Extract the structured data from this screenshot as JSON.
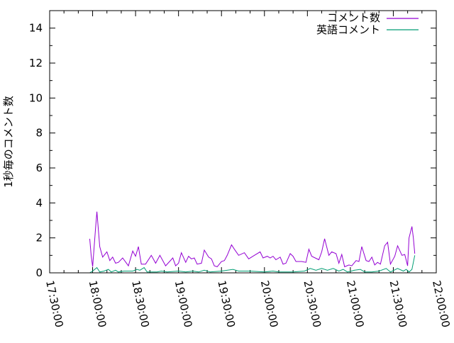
{
  "chart_data": {
    "type": "line",
    "title": "",
    "xlabel": "",
    "ylabel": "1秒毎のコメント数",
    "xlim": [
      "17:30:00",
      "22:00:00"
    ],
    "ylim": [
      0,
      15
    ],
    "xticks": [
      "17:30:00",
      "18:00:00",
      "18:30:00",
      "19:00:00",
      "19:30:00",
      "20:00:00",
      "20:30:00",
      "21:00:00",
      "21:30:00",
      "22:00:00"
    ],
    "yticks": [
      "0",
      "2",
      "4",
      "6",
      "8",
      "10",
      "12",
      "14"
    ],
    "grid": false,
    "legend_position": "top-right",
    "series": [
      {
        "name": "コメント数",
        "color": "#9400d3",
        "points": [
          [
            "17:58",
            1.95
          ],
          [
            "17:59",
            1.0
          ],
          [
            "18:00",
            0.35
          ],
          [
            "18:02",
            2.5
          ],
          [
            "18:03",
            3.5
          ],
          [
            "18:04",
            2.5
          ],
          [
            "18:05",
            1.5
          ],
          [
            "18:07",
            0.9
          ],
          [
            "18:10",
            1.2
          ],
          [
            "18:12",
            0.7
          ],
          [
            "18:14",
            0.9
          ],
          [
            "18:16",
            0.55
          ],
          [
            "18:18",
            0.6
          ],
          [
            "18:21",
            0.85
          ],
          [
            "18:25",
            0.4
          ],
          [
            "18:28",
            1.25
          ],
          [
            "18:30",
            0.95
          ],
          [
            "18:32",
            1.5
          ],
          [
            "18:34",
            0.5
          ],
          [
            "18:37",
            0.5
          ],
          [
            "18:41",
            1.0
          ],
          [
            "18:44",
            0.55
          ],
          [
            "18:47",
            1.0
          ],
          [
            "18:51",
            0.4
          ],
          [
            "18:56",
            0.85
          ],
          [
            "18:58",
            0.4
          ],
          [
            "19:00",
            0.55
          ],
          [
            "19:02",
            1.15
          ],
          [
            "19:05",
            0.6
          ],
          [
            "19:07",
            0.95
          ],
          [
            "19:09",
            0.8
          ],
          [
            "19:11",
            0.85
          ],
          [
            "19:13",
            0.5
          ],
          [
            "19:16",
            0.55
          ],
          [
            "19:18",
            1.3
          ],
          [
            "19:21",
            0.9
          ],
          [
            "19:23",
            0.8
          ],
          [
            "19:25",
            0.4
          ],
          [
            "19:27",
            0.35
          ],
          [
            "19:30",
            0.65
          ],
          [
            "19:32",
            0.7
          ],
          [
            "19:34",
            1.0
          ],
          [
            "19:37",
            1.6
          ],
          [
            "19:39",
            1.35
          ],
          [
            "19:42",
            1.0
          ],
          [
            "19:46",
            1.15
          ],
          [
            "19:49",
            0.8
          ],
          [
            "19:52",
            0.95
          ],
          [
            "19:53",
            1.0
          ],
          [
            "19:57",
            1.2
          ],
          [
            "19:59",
            0.85
          ],
          [
            "20:02",
            0.95
          ],
          [
            "20:04",
            0.85
          ],
          [
            "20:06",
            0.95
          ],
          [
            "20:08",
            0.75
          ],
          [
            "20:11",
            0.9
          ],
          [
            "20:13",
            0.5
          ],
          [
            "20:15",
            0.55
          ],
          [
            "20:18",
            1.1
          ],
          [
            "20:20",
            0.95
          ],
          [
            "20:22",
            0.65
          ],
          [
            "20:26",
            0.65
          ],
          [
            "20:29",
            0.6
          ],
          [
            "20:31",
            1.35
          ],
          [
            "20:33",
            0.95
          ],
          [
            "20:38",
            0.75
          ],
          [
            "20:40",
            1.2
          ],
          [
            "20:42",
            1.95
          ],
          [
            "20:45",
            1.0
          ],
          [
            "20:47",
            1.2
          ],
          [
            "20:50",
            1.1
          ],
          [
            "20:52",
            0.55
          ],
          [
            "20:54",
            1.05
          ],
          [
            "20:56",
            0.35
          ],
          [
            "20:59",
            0.45
          ],
          [
            "21:01",
            0.4
          ],
          [
            "21:04",
            0.7
          ],
          [
            "21:06",
            0.65
          ],
          [
            "21:08",
            1.5
          ],
          [
            "21:11",
            0.7
          ],
          [
            "21:13",
            0.65
          ],
          [
            "21:15",
            0.9
          ],
          [
            "21:17",
            0.45
          ],
          [
            "21:19",
            0.6
          ],
          [
            "21:21",
            0.5
          ],
          [
            "21:24",
            1.55
          ],
          [
            "21:26",
            1.75
          ],
          [
            "21:28",
            0.5
          ],
          [
            "21:31",
            0.95
          ],
          [
            "21:33",
            1.55
          ],
          [
            "21:36",
            1.0
          ],
          [
            "21:38",
            1.05
          ],
          [
            "21:40",
            0.4
          ],
          [
            "21:41",
            2.0
          ],
          [
            "21:43",
            2.65
          ],
          [
            "21:44",
            2.0
          ],
          [
            "21:45",
            1.1
          ]
        ]
      },
      {
        "name": "英語コメント",
        "color": "#009e73",
        "points": [
          [
            "17:58",
            0
          ],
          [
            "18:00",
            0.1
          ],
          [
            "18:03",
            0.3
          ],
          [
            "18:05",
            0.05
          ],
          [
            "18:08",
            0.1
          ],
          [
            "18:11",
            0.2
          ],
          [
            "18:13",
            0.05
          ],
          [
            "18:16",
            0.15
          ],
          [
            "18:18",
            0.05
          ],
          [
            "18:22",
            0.1
          ],
          [
            "18:28",
            0.1
          ],
          [
            "18:31",
            0.2
          ],
          [
            "18:33",
            0.15
          ],
          [
            "18:36",
            0.3
          ],
          [
            "18:38",
            0.05
          ],
          [
            "18:45",
            0.05
          ],
          [
            "18:48",
            0.1
          ],
          [
            "18:52",
            0.05
          ],
          [
            "19:00",
            0.1
          ],
          [
            "19:05",
            0.05
          ],
          [
            "19:10",
            0.1
          ],
          [
            "19:14",
            0.05
          ],
          [
            "19:18",
            0.15
          ],
          [
            "19:22",
            0.05
          ],
          [
            "19:30",
            0.1
          ],
          [
            "19:38",
            0.2
          ],
          [
            "19:42",
            0.1
          ],
          [
            "19:50",
            0.1
          ],
          [
            "20:00",
            0.05
          ],
          [
            "20:06",
            0.1
          ],
          [
            "20:10",
            0.05
          ],
          [
            "20:20",
            0.05
          ],
          [
            "20:28",
            0.1
          ],
          [
            "20:32",
            0.25
          ],
          [
            "20:36",
            0.15
          ],
          [
            "20:40",
            0.25
          ],
          [
            "20:44",
            0.15
          ],
          [
            "20:48",
            0.25
          ],
          [
            "20:52",
            0.1
          ],
          [
            "20:55",
            0.2
          ],
          [
            "20:58",
            0.05
          ],
          [
            "21:03",
            0.15
          ],
          [
            "21:07",
            0.2
          ],
          [
            "21:10",
            0.05
          ],
          [
            "21:15",
            0.05
          ],
          [
            "21:20",
            0.1
          ],
          [
            "21:25",
            0.25
          ],
          [
            "21:28",
            0.05
          ],
          [
            "21:33",
            0.25
          ],
          [
            "21:37",
            0.1
          ],
          [
            "21:39",
            0.2
          ],
          [
            "21:41",
            0.05
          ],
          [
            "21:43",
            0.2
          ],
          [
            "21:45",
            1.0
          ]
        ]
      }
    ]
  }
}
